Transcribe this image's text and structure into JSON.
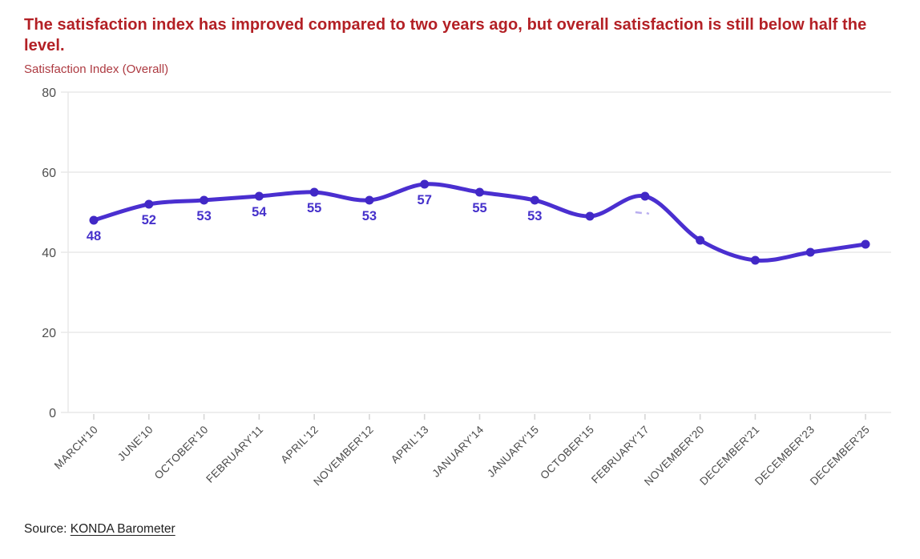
{
  "header": {
    "title": "The satisfaction index has improved compared to two years ago, but overall satisfaction is still below half the level.",
    "subtitle": "Satisfaction Index (Overall)"
  },
  "chart_data": {
    "type": "line",
    "title": "Satisfaction Index (Overall)",
    "categories": [
      "MARCH'10",
      "JUNE'10",
      "OCTOBER'10",
      "FEBRUARY'11",
      "APRIL'12",
      "NOVEMBER'12",
      "APRIL'13",
      "JANUARY'14",
      "JANUARY'15",
      "OCTOBER'15",
      "FEBRUARY'17",
      "NOVEMBER'20",
      "DECEMBER'21",
      "DECEMBER'23",
      "DECEMBER'25"
    ],
    "values": [
      48,
      52,
      53,
      54,
      55,
      53,
      57,
      55,
      53,
      49,
      54,
      43,
      38,
      40,
      42
    ],
    "point_labels": [
      "48",
      "52",
      "53",
      "54",
      "55",
      "53",
      "57",
      "55",
      "53",
      "",
      "",
      "",
      "",
      "",
      ""
    ],
    "erased_label_point_index": 10,
    "xlabel": "",
    "ylabel": "",
    "ylim": [
      0,
      80
    ],
    "yticks": [
      0,
      20,
      40,
      60,
      80
    ],
    "grid": "horizontal",
    "legend": "none",
    "x_tick_rotation": -45
  },
  "colors": {
    "line": "#4a2fd0",
    "point": "#4128c6",
    "value_label": "#4631cb",
    "title": "#b32025",
    "subtitle": "#ad3a41",
    "axis_text": "#4f4f4f",
    "category_text": "#4a4a4a",
    "grid": "#e9e9e9",
    "tick": "#d6d6d6",
    "erased_mark": "#b9aeef"
  },
  "footer": {
    "source_prefix": "Source: ",
    "source_link": "KONDA Barometer"
  }
}
